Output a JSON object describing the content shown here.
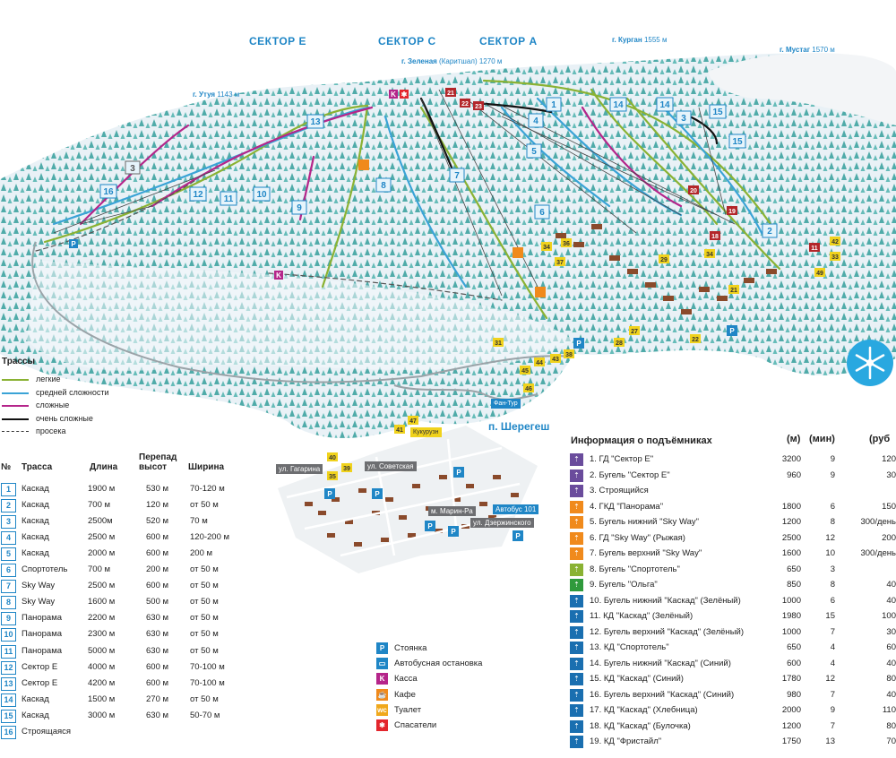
{
  "map": {
    "sectors": [
      "СЕКТОР Е",
      "СЕКТОР С",
      "СЕКТОР А"
    ],
    "peaks": [
      {
        "name": "г. Курган",
        "elev": "1555 м"
      },
      {
        "name": "г. Мустаг",
        "elev": "1570 м"
      },
      {
        "name": "г. Зеленая",
        "extra": "(Каритшал)",
        "elev": "1270 м"
      },
      {
        "name": "г. Утуя",
        "elev": "1143 м"
      }
    ],
    "village": "п. Шерегеш",
    "streets": [
      "ул. Гагарина",
      "ул. Советская",
      "м. Марин-Ра",
      "Автобус 101",
      "ул. Дзержинского",
      "Кукурузн",
      "Фан-Тур"
    ],
    "trail_markers": [
      "13",
      "14",
      "14",
      "15",
      "15",
      "3",
      "1",
      "4",
      "5",
      "7",
      "8",
      "9",
      "10",
      "11",
      "12",
      "16",
      "3",
      "6",
      "2"
    ],
    "colors": {
      "easy": "#8ab233",
      "medium": "#3aa3d6",
      "hard": "#b5258a",
      "very_hard": "#111111",
      "accent": "#1f86c6",
      "lift": "#1a6fb0"
    }
  },
  "legend": {
    "title": "Трассы",
    "items": [
      {
        "label": "легкие",
        "color": "#8ab233",
        "dashed": false
      },
      {
        "label": "средней сложности",
        "color": "#3aa3d6",
        "dashed": false
      },
      {
        "label": "сложные",
        "color": "#b5258a",
        "dashed": false
      },
      {
        "label": "очень сложные",
        "color": "#111111",
        "dashed": false
      },
      {
        "label": "просека",
        "color": "#333333",
        "dashed": true
      }
    ]
  },
  "trails_table": {
    "headers": {
      "num": "№",
      "name": "Трасса",
      "length": "Длина",
      "drop": "Перепад высот",
      "width": "Ширина"
    },
    "rows": [
      {
        "num": "1",
        "name": "Каскад",
        "length": "1900 м",
        "drop": "530 м",
        "width": "70-120 м"
      },
      {
        "num": "2",
        "name": "Каскад",
        "length": "700 м",
        "drop": "120 м",
        "width": "от 50 м"
      },
      {
        "num": "3",
        "name": "Каскад",
        "length": "2500м",
        "drop": "520 м",
        "width": "70 м"
      },
      {
        "num": "4",
        "name": "Каскад",
        "length": "2500 м",
        "drop": "600 м",
        "width": "120-200 м"
      },
      {
        "num": "5",
        "name": "Каскад",
        "length": "2000 м",
        "drop": "600 м",
        "width": "200 м"
      },
      {
        "num": "6",
        "name": "Спортотель",
        "length": "700 м",
        "drop": "200 м",
        "width": "от 50 м"
      },
      {
        "num": "7",
        "name": "Sky Way",
        "length": "2500 м",
        "drop": "600 м",
        "width": "от 50 м"
      },
      {
        "num": "8",
        "name": "Sky Way",
        "length": "1600 м",
        "drop": "500 м",
        "width": "от 50 м"
      },
      {
        "num": "9",
        "name": "Панорама",
        "length": "2200 м",
        "drop": "630 м",
        "width": "от 50 м"
      },
      {
        "num": "10",
        "name": "Панорама",
        "length": "2300 м",
        "drop": "630 м",
        "width": "от 50 м"
      },
      {
        "num": "11",
        "name": "Панорама",
        "length": "5000 м",
        "drop": "630 м",
        "width": "от 50 м"
      },
      {
        "num": "12",
        "name": "Сектор Е",
        "length": "4000 м",
        "drop": "600 м",
        "width": "70-100 м"
      },
      {
        "num": "13",
        "name": "Сектор Е",
        "length": "4200 м",
        "drop": "600 м",
        "width": "70-100 м"
      },
      {
        "num": "14",
        "name": "Каскад",
        "length": "1500 м",
        "drop": "270 м",
        "width": "от 50 м"
      },
      {
        "num": "15",
        "name": "Каскад",
        "length": "3000 м",
        "drop": "630 м",
        "width": "50-70 м"
      },
      {
        "num": "16",
        "name": "Строящаяся",
        "length": "",
        "drop": "",
        "width": ""
      }
    ]
  },
  "services": [
    {
      "icon": "parking-icon",
      "glyph": "P",
      "color": "#1f86c6",
      "label": "Стоянка"
    },
    {
      "icon": "bus-stop-icon",
      "glyph": "▭",
      "color": "#1f86c6",
      "label": "Автобусная остановка"
    },
    {
      "icon": "ticket-office-icon",
      "glyph": "K",
      "color": "#b5258a",
      "label": "Касса"
    },
    {
      "icon": "cafe-icon",
      "glyph": "☕",
      "color": "#f08a1c",
      "label": "Кафе"
    },
    {
      "icon": "toilet-icon",
      "glyph": "wc",
      "color": "#f0a81c",
      "label": "Туалет"
    },
    {
      "icon": "rescue-icon",
      "glyph": "✱",
      "color": "#e3262d",
      "label": "Спасатели"
    }
  ],
  "lifts": {
    "title": "Информация о подъёмниках",
    "headers": {
      "length": "(м)",
      "minutes": "(мин)",
      "price": "(руб"
    },
    "rows": [
      {
        "label": "1. ГД \"Сектор Е\"",
        "length": "3200",
        "minutes": "9",
        "price": "120",
        "color": "#6a4c9c"
      },
      {
        "label": "2. Бугель \"Сектор Е\"",
        "length": "960",
        "minutes": "9",
        "price": "30",
        "color": "#6a4c9c"
      },
      {
        "label": "3. Строящийся",
        "length": "",
        "minutes": "",
        "price": "",
        "color": "#6a4c9c"
      },
      {
        "label": "4. ГКД \"Панорама\"",
        "length": "1800",
        "minutes": "6",
        "price": "150",
        "color": "#f08a1c"
      },
      {
        "label": "5. Бугель нижний \"Sky Way\"",
        "length": "1200",
        "minutes": "8",
        "price": "300/день",
        "color": "#f08a1c"
      },
      {
        "label": "6. ГД \"Sky Way\" (Рыжая)",
        "length": "2500",
        "minutes": "12",
        "price": "200",
        "color": "#f08a1c"
      },
      {
        "label": "7. Бугель верхний \"Sky Way\"",
        "length": "1600",
        "minutes": "10",
        "price": "300/день",
        "color": "#f08a1c"
      },
      {
        "label": "8. Бугель \"Спортотель\"",
        "length": "650",
        "minutes": "3",
        "price": "",
        "color": "#8ab233"
      },
      {
        "label": "9. Бугель \"Ольга\"",
        "length": "850",
        "minutes": "8",
        "price": "40",
        "color": "#2f9a3c"
      },
      {
        "label": "10. Бугель нижний \"Каскад\" (Зелёный)",
        "length": "1000",
        "minutes": "6",
        "price": "40",
        "color": "#1a6fb0"
      },
      {
        "label": "11. КД \"Каскад\" (Зелёный)",
        "length": "1980",
        "minutes": "15",
        "price": "100",
        "color": "#1a6fb0"
      },
      {
        "label": "12. Бугель верхний \"Каскад\" (Зелёный)",
        "length": "1000",
        "minutes": "7",
        "price": "30",
        "color": "#1a6fb0"
      },
      {
        "label": "13. КД \"Спортотель\"",
        "length": "650",
        "minutes": "4",
        "price": "60",
        "color": "#1a6fb0"
      },
      {
        "label": "14. Бугель нижний \"Каскад\" (Синий)",
        "length": "600",
        "minutes": "4",
        "price": "40",
        "color": "#1a6fb0"
      },
      {
        "label": "15. КД \"Каскад\" (Синий)",
        "length": "1780",
        "minutes": "12",
        "price": "80",
        "color": "#1a6fb0"
      },
      {
        "label": "16. Бугель верхний \"Каскад\" (Синий)",
        "length": "980",
        "minutes": "7",
        "price": "40",
        "color": "#1a6fb0"
      },
      {
        "label": "17. КД \"Каскад\" (Хлебница)",
        "length": "2000",
        "minutes": "9",
        "price": "110",
        "color": "#1a6fb0"
      },
      {
        "label": "18. КД \"Каскад\" (Булочка)",
        "length": "1200",
        "minutes": "7",
        "price": "80",
        "color": "#1a6fb0"
      },
      {
        "label": "19. КД \"Фристайл\"",
        "length": "1750",
        "minutes": "13",
        "price": "70",
        "color": "#1a6fb0"
      }
    ]
  }
}
